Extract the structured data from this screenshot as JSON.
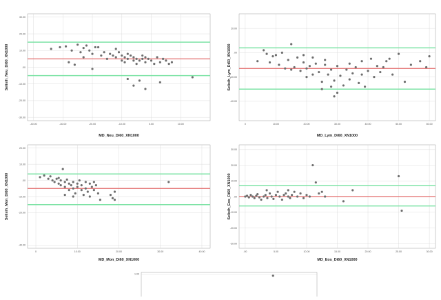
{
  "chart_data": [
    {
      "type": "scatter",
      "xlabel": "MD_Neu_Di60_XN1000",
      "ylabel": "Selisih_Neu_Di60_XN1000",
      "xlim": [
        -42,
        20
      ],
      "ylim": [
        -32,
        32
      ],
      "xticks": [
        "-40.00",
        "-30.00",
        "-20.00",
        "-10.00",
        "0.00",
        "10.00"
      ],
      "xtick_values": [
        -40,
        -30,
        -20,
        -10,
        0,
        10
      ],
      "yticks": [
        "-30.00",
        "-20.00",
        "-10.00",
        ".00",
        "10.00",
        "20.00",
        "30.00"
      ],
      "ytick_values": [
        -30,
        -20,
        -10,
        0,
        10,
        20,
        30
      ],
      "lines": {
        "mean": 5,
        "upper": 15,
        "lower": -5
      },
      "points": [
        [
          -34,
          11
        ],
        [
          -31,
          12
        ],
        [
          -29,
          12.5
        ],
        [
          -27,
          10
        ],
        [
          -25,
          13.5
        ],
        [
          -24,
          9
        ],
        [
          -23,
          6
        ],
        [
          -23,
          11.5
        ],
        [
          -22,
          13
        ],
        [
          -21,
          10
        ],
        [
          -20,
          8
        ],
        [
          -19,
          12
        ],
        [
          -18,
          12
        ],
        [
          -17,
          7
        ],
        [
          -16,
          9
        ],
        [
          -15,
          5
        ],
        [
          -14,
          8
        ],
        [
          -13,
          7
        ],
        [
          -12,
          11
        ],
        [
          -12,
          6
        ],
        [
          -11,
          9
        ],
        [
          -10,
          4
        ],
        [
          -10,
          7
        ],
        [
          -9,
          6
        ],
        [
          -9,
          3
        ],
        [
          -8,
          5
        ],
        [
          -8,
          8
        ],
        [
          -7,
          7
        ],
        [
          -6,
          4
        ],
        [
          -6,
          6
        ],
        [
          -5,
          5
        ],
        [
          -5,
          2
        ],
        [
          -4,
          4
        ],
        [
          -3,
          7
        ],
        [
          -3,
          5
        ],
        [
          -2,
          3
        ],
        [
          -2,
          6
        ],
        [
          -1,
          5
        ],
        [
          0,
          4
        ],
        [
          1,
          2
        ],
        [
          2,
          6
        ],
        [
          3,
          3
        ],
        [
          4,
          5
        ],
        [
          5,
          4
        ],
        [
          6,
          2
        ],
        [
          7,
          3
        ],
        [
          -20,
          -1
        ],
        [
          -8,
          -7
        ],
        [
          -6,
          -11
        ],
        [
          -4,
          -8
        ],
        [
          -2,
          -13
        ],
        [
          3,
          -9
        ],
        [
          -26,
          1.5
        ],
        [
          14,
          -6
        ],
        [
          -28,
          3
        ]
      ]
    },
    {
      "type": "scatter",
      "xlabel": "MD_Lym_Di60_XN1000",
      "ylabel": "Selisih_Lym_Di60_XN1000",
      "xlim": [
        -2,
        62
      ],
      "ylim": [
        -56,
        32
      ],
      "xticks": [
        "0",
        "10.00",
        "20.00",
        "30.00",
        "40.00",
        "50.00",
        "60.00"
      ],
      "xtick_values": [
        0,
        10,
        20,
        30,
        40,
        50,
        60
      ],
      "yticks": [
        "-40.00",
        "-20.00",
        ".00",
        "20.00"
      ],
      "ytick_values": [
        -40,
        -20,
        0,
        20
      ],
      "lines": {
        "mean": -13,
        "upper": 4,
        "lower": -30
      },
      "points": [
        [
          4,
          -7
        ],
        [
          6,
          2
        ],
        [
          7,
          -1
        ],
        [
          8,
          -8
        ],
        [
          9,
          -3
        ],
        [
          10,
          -2
        ],
        [
          11,
          -10
        ],
        [
          12,
          0
        ],
        [
          13,
          -13
        ],
        [
          14,
          -6
        ],
        [
          15,
          -14
        ],
        [
          15,
          7
        ],
        [
          16,
          -12
        ],
        [
          17,
          -4
        ],
        [
          18,
          -15
        ],
        [
          19,
          -8
        ],
        [
          19,
          -2
        ],
        [
          20,
          -13
        ],
        [
          20,
          -20
        ],
        [
          21,
          -11
        ],
        [
          22,
          -18
        ],
        [
          23,
          -9
        ],
        [
          24,
          -16
        ],
        [
          25,
          -24
        ],
        [
          26,
          -10
        ],
        [
          26,
          -6
        ],
        [
          27,
          -18
        ],
        [
          28,
          -28
        ],
        [
          28,
          -14
        ],
        [
          29,
          -23
        ],
        [
          30,
          -11
        ],
        [
          30,
          -33
        ],
        [
          31,
          -19
        ],
        [
          32,
          -27
        ],
        [
          33,
          -14
        ],
        [
          34,
          -22
        ],
        [
          34,
          -9
        ],
        [
          35,
          -17
        ],
        [
          36,
          -12
        ],
        [
          37,
          -25
        ],
        [
          38,
          -7
        ],
        [
          38,
          -18
        ],
        [
          39,
          -28
        ],
        [
          40,
          -15
        ],
        [
          41,
          -5
        ],
        [
          42,
          -20
        ],
        [
          43,
          -11
        ],
        [
          44,
          -16
        ],
        [
          45,
          -12
        ],
        [
          46,
          -7
        ],
        [
          47,
          -5
        ],
        [
          48,
          -18
        ],
        [
          50,
          -1
        ],
        [
          52,
          -24
        ],
        [
          54,
          -10
        ],
        [
          57,
          -7
        ],
        [
          59,
          -12
        ],
        [
          60,
          -3
        ],
        [
          22,
          -4
        ],
        [
          25,
          -30
        ],
        [
          29,
          -36
        ]
      ]
    },
    {
      "type": "scatter",
      "xlabel": "MD_Mon_Di60_XN1000",
      "ylabel": "Selisih_Mon_Di60_XN1000",
      "xlim": [
        -2,
        42
      ],
      "ylim": [
        -42,
        22
      ],
      "xticks": [
        "0",
        "10.00",
        "20.00",
        "30.00",
        "40.00"
      ],
      "xtick_values": [
        0,
        10,
        20,
        30,
        40
      ],
      "yticks": [
        "-40.00",
        "-20.00",
        "-10.00",
        ".00",
        "10.00",
        "20.00"
      ],
      "ytick_values": [
        -40,
        -20,
        -10,
        0,
        10,
        20
      ],
      "lines": {
        "mean": -5,
        "upper": 4,
        "lower": -15
      },
      "points": [
        [
          1,
          2
        ],
        [
          2,
          3
        ],
        [
          3,
          1
        ],
        [
          3.5,
          2.5
        ],
        [
          4,
          0
        ],
        [
          4.5,
          -1
        ],
        [
          5,
          1
        ],
        [
          5.5,
          -2
        ],
        [
          5.5,
          1.5
        ],
        [
          6,
          -3
        ],
        [
          6,
          0
        ],
        [
          6.5,
          7
        ],
        [
          7,
          -1
        ],
        [
          7,
          -4
        ],
        [
          7.5,
          0.5
        ],
        [
          8,
          -2
        ],
        [
          8,
          -6
        ],
        [
          8.5,
          -3
        ],
        [
          9,
          -1
        ],
        [
          9,
          -5
        ],
        [
          9.5,
          -8
        ],
        [
          10,
          -2
        ],
        [
          10,
          -4
        ],
        [
          10.5,
          0
        ],
        [
          11,
          -6
        ],
        [
          11,
          -3
        ],
        [
          11.5,
          -9
        ],
        [
          12,
          -1
        ],
        [
          12,
          -5
        ],
        [
          12.5,
          -7
        ],
        [
          13,
          -2
        ],
        [
          13,
          -10
        ],
        [
          13.5,
          -4
        ],
        [
          14,
          -6
        ],
        [
          14,
          -1
        ],
        [
          14.5,
          -3
        ],
        [
          15,
          -8
        ],
        [
          15.5,
          -12
        ],
        [
          7,
          -9
        ],
        [
          9,
          -10
        ],
        [
          18,
          -9
        ],
        [
          18.5,
          -11
        ],
        [
          19,
          -7
        ],
        [
          19,
          -12
        ],
        [
          32,
          -1
        ]
      ]
    },
    {
      "type": "scatter",
      "xlabel": "MD_Eos_Di60_XN1000",
      "ylabel": "Selisih_Eos_Di60_XN1000",
      "xlim": [
        -1,
        31
      ],
      "ylim": [
        -33,
        33
      ],
      "xticks": [
        ".00",
        "5.00",
        "10.00",
        "15.00",
        "20.00",
        "25.00",
        "30.00"
      ],
      "xtick_values": [
        0,
        5,
        10,
        15,
        20,
        25,
        30
      ],
      "yticks": [
        "-30.00",
        "-20.00",
        "-10.00",
        ".00",
        "10.00",
        "20.00",
        "30.00"
      ],
      "ytick_values": [
        -30,
        -20,
        -10,
        0,
        10,
        20,
        30
      ],
      "lines": {
        "mean": 0,
        "upper": 7,
        "lower": -6
      },
      "points": [
        [
          0,
          0
        ],
        [
          0.3,
          0.5
        ],
        [
          0.6,
          -0.5
        ],
        [
          0.9,
          1
        ],
        [
          1.2,
          0
        ],
        [
          1.5,
          -1
        ],
        [
          1.8,
          0.5
        ],
        [
          2,
          1.5
        ],
        [
          2.3,
          -0.5
        ],
        [
          2.6,
          -2
        ],
        [
          3,
          0
        ],
        [
          3.3,
          1
        ],
        [
          3.6,
          -1
        ],
        [
          4,
          2
        ],
        [
          4.3,
          0
        ],
        [
          4.6,
          -1.5
        ],
        [
          5,
          1
        ],
        [
          5.3,
          3
        ],
        [
          5.6,
          0
        ],
        [
          6,
          -2
        ],
        [
          6.3,
          1
        ],
        [
          6.6,
          2
        ],
        [
          7,
          0
        ],
        [
          7.3,
          -1
        ],
        [
          7.6,
          1
        ],
        [
          8,
          3
        ],
        [
          8.5,
          0
        ],
        [
          9,
          2
        ],
        [
          9.5,
          -1
        ],
        [
          10,
          1
        ],
        [
          10.5,
          0
        ],
        [
          11,
          20
        ],
        [
          11.5,
          9
        ],
        [
          12,
          2
        ],
        [
          12.5,
          3
        ],
        [
          13,
          0
        ],
        [
          3.5,
          4
        ],
        [
          7,
          4
        ],
        [
          16,
          -3
        ],
        [
          17.5,
          4
        ],
        [
          25,
          13
        ],
        [
          25.5,
          -9
        ]
      ]
    },
    {
      "type": "scatter",
      "xlabel": "",
      "ylabel": "",
      "xlim": [
        0,
        10
      ],
      "ylim": [
        0,
        10
      ],
      "yticks": [
        "1.00"
      ],
      "ytick_values": [
        9.6
      ],
      "points": [
        [
          7.5,
          9.2
        ]
      ]
    }
  ]
}
